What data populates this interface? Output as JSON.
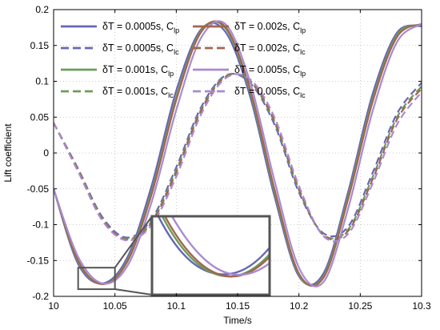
{
  "chart_data": {
    "type": "line",
    "xlabel": "Time/s",
    "ylabel": "Lift coefficient",
    "xlim": [
      10,
      10.3
    ],
    "ylim": [
      -0.2,
      0.2
    ],
    "x_ticks": [
      "10",
      "10.05",
      "10.1",
      "10.15",
      "10.2",
      "10.25",
      "10.3"
    ],
    "y_ticks": [
      "-0.2",
      "-0.15",
      "-0.1",
      "-0.05",
      "0",
      "0.05",
      "0.1",
      "0.15",
      "0.2"
    ],
    "grid": true,
    "legend_position": "top-left",
    "series": [
      {
        "name": "δT = 0.0005s, C",
        "sub": "lp",
        "color": "#6666b8",
        "dash": "solid",
        "x": [
          10,
          10.02,
          10.04,
          10.06,
          10.08,
          10.1,
          10.12,
          10.14,
          10.16,
          10.18,
          10.2,
          10.22,
          10.24,
          10.26,
          10.28,
          10.3
        ],
        "y": [
          -0.05,
          -0.155,
          -0.182,
          -0.146,
          -0.045,
          0.087,
          0.172,
          0.169,
          0.08,
          -0.06,
          -0.172,
          -0.168,
          -0.055,
          0.082,
          0.168,
          0.177
        ]
      },
      {
        "name": "δT = 0.0005s, C",
        "sub": "lc",
        "color": "#6666b8",
        "dash": "dashed",
        "x": [
          10,
          10.02,
          10.04,
          10.06,
          10.08,
          10.1,
          10.12,
          10.14,
          10.16,
          10.18,
          10.2,
          10.22,
          10.24,
          10.26,
          10.28,
          10.3
        ],
        "y": [
          0.042,
          -0.022,
          -0.09,
          -0.118,
          -0.092,
          -0.02,
          0.063,
          0.108,
          0.098,
          0.04,
          -0.055,
          -0.112,
          -0.103,
          -0.028,
          0.055,
          0.098
        ]
      },
      {
        "name": "δT = 0.001s, C",
        "sub": "lp",
        "color": "#6d9c5a",
        "dash": "solid",
        "x": [
          10,
          10.02,
          10.04,
          10.06,
          10.08,
          10.1,
          10.12,
          10.14,
          10.16,
          10.18,
          10.2,
          10.22,
          10.24,
          10.26,
          10.28,
          10.3
        ],
        "y": [
          -0.05,
          -0.152,
          -0.183,
          -0.15,
          -0.053,
          0.078,
          0.17,
          0.174,
          0.086,
          -0.054,
          -0.17,
          -0.172,
          -0.061,
          0.075,
          0.165,
          0.179
        ]
      },
      {
        "name": "δT = 0.001s, C",
        "sub": "lc",
        "color": "#6d9c5a",
        "dash": "dashed",
        "x": [
          10,
          10.02,
          10.04,
          10.06,
          10.08,
          10.1,
          10.12,
          10.14,
          10.16,
          10.18,
          10.2,
          10.22,
          10.24,
          10.26,
          10.28,
          10.3
        ],
        "y": [
          0.042,
          -0.023,
          -0.092,
          -0.12,
          -0.095,
          -0.024,
          0.06,
          0.107,
          0.1,
          0.043,
          -0.052,
          -0.114,
          -0.107,
          -0.034,
          0.05,
          0.093
        ]
      },
      {
        "name": "δT = 0.002s, C",
        "sub": "lp",
        "color": "#a0664e",
        "dash": "solid",
        "x": [
          10,
          10.02,
          10.04,
          10.06,
          10.08,
          10.1,
          10.12,
          10.14,
          10.16,
          10.18,
          10.2,
          10.22,
          10.24,
          10.26,
          10.28,
          10.3
        ],
        "y": [
          -0.05,
          -0.15,
          -0.183,
          -0.152,
          -0.057,
          0.074,
          0.168,
          0.176,
          0.09,
          -0.05,
          -0.168,
          -0.174,
          -0.065,
          0.071,
          0.162,
          0.18
        ]
      },
      {
        "name": "δT = 0.002s, C",
        "sub": "lc",
        "color": "#a0664e",
        "dash": "dashed",
        "x": [
          10,
          10.02,
          10.04,
          10.06,
          10.08,
          10.1,
          10.12,
          10.14,
          10.16,
          10.18,
          10.2,
          10.22,
          10.24,
          10.26,
          10.28,
          10.3
        ],
        "y": [
          0.042,
          -0.024,
          -0.093,
          -0.121,
          -0.097,
          -0.027,
          0.058,
          0.106,
          0.101,
          0.045,
          -0.05,
          -0.115,
          -0.109,
          -0.037,
          0.047,
          0.09
        ]
      },
      {
        "name": "δT = 0.005s, C",
        "sub": "lp",
        "color": "#a98ad0",
        "dash": "solid",
        "x": [
          10,
          10.02,
          10.04,
          10.06,
          10.08,
          10.1,
          10.12,
          10.14,
          10.16,
          10.18,
          10.2,
          10.22,
          10.24,
          10.26,
          10.28,
          10.3
        ],
        "y": [
          -0.05,
          -0.145,
          -0.182,
          -0.158,
          -0.068,
          0.06,
          0.16,
          0.18,
          0.1,
          -0.038,
          -0.16,
          -0.18,
          -0.078,
          0.058,
          0.155,
          0.18
        ]
      },
      {
        "name": "δT = 0.005s, C",
        "sub": "lc",
        "color": "#a98ad0",
        "dash": "dashed",
        "x": [
          10,
          10.02,
          10.04,
          10.06,
          10.08,
          10.1,
          10.12,
          10.14,
          10.16,
          10.18,
          10.2,
          10.22,
          10.24,
          10.26,
          10.28,
          10.3
        ],
        "y": [
          0.042,
          -0.026,
          -0.095,
          -0.122,
          -0.1,
          -0.033,
          0.053,
          0.104,
          0.103,
          0.05,
          -0.046,
          -0.116,
          -0.113,
          -0.043,
          0.04,
          0.085
        ]
      }
    ],
    "legend_order": [
      0,
      4,
      1,
      5,
      2,
      6,
      3,
      7
    ],
    "zoom_region": {
      "xlim": [
        10.02,
        10.05
      ],
      "ylim": [
        -0.19,
        -0.16
      ]
    },
    "zoom_inset_position": "bottom-center"
  }
}
